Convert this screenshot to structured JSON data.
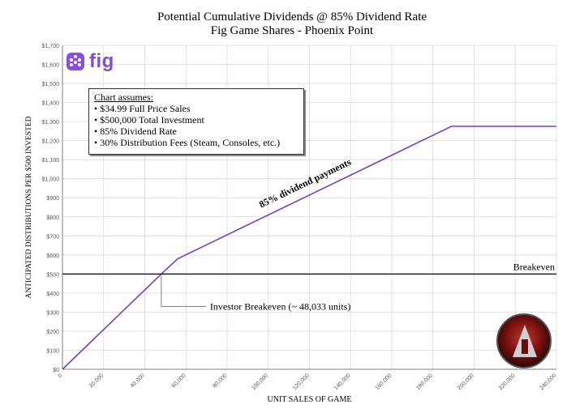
{
  "colors": {
    "series": "#7b3fb5",
    "breakeven": "#000000",
    "grid": "#d9d9d9",
    "axis": "#7f7f7f",
    "logo_purple": "#8a4fd8"
  },
  "logo": {
    "icon": "fig-logo-icon",
    "text": "fig"
  },
  "assumptions": {
    "title": "Chart assumes:",
    "items": [
      "$34.99 Full Price Sales",
      "$500,000 Total Investment",
      "85%  Dividend Rate",
      "30%  Distribution Fees (Steam, Consoles, etc.)"
    ]
  },
  "emblem": {
    "icon": "phoenix-point-emblem-icon"
  },
  "chart_data": {
    "type": "line",
    "title": "Potential Cumulative Dividends @ 85% Dividend Rate",
    "subtitle": "Fig Game Shares - Phoenix Point",
    "xlabel": "UNIT SALES OF GAME",
    "ylabel": "ANTICIPATED DISTRIBUTIONS PER $500 INVESTED",
    "xlim": [
      0,
      240000
    ],
    "ylim": [
      0,
      1700
    ],
    "grid": true,
    "x_ticks": [
      0,
      20000,
      40000,
      60000,
      80000,
      100000,
      120000,
      140000,
      160000,
      180000,
      200000,
      220000,
      240000
    ],
    "x_tick_labels": [
      "0",
      "20,000",
      "40,000",
      "60,000",
      "80,000",
      "100,000",
      "120,000",
      "140,000",
      "160,000",
      "180,000",
      "200,000",
      "220,000",
      "240,000"
    ],
    "y_ticks": [
      0,
      100,
      200,
      300,
      400,
      500,
      600,
      700,
      800,
      900,
      1000,
      1100,
      1200,
      1300,
      1400,
      1500,
      1600,
      1700
    ],
    "y_tick_labels": [
      "$0",
      "$100",
      "$200",
      "$300",
      "$400",
      "$500",
      "$600",
      "$700",
      "$800",
      "$900",
      "$1,000",
      "$1,100",
      "$1,200",
      "$1,300",
      "$1,400",
      "$1,500",
      "$1,600",
      "$1,700"
    ],
    "series": [
      {
        "x": [
          0,
          48033,
          56000,
          189000,
          240000
        ],
        "y": [
          0,
          500,
          580,
          1275,
          1275
        ]
      }
    ],
    "breakeven_line": {
      "y": 500,
      "label": "Breakeven"
    },
    "annotations": {
      "series_label": "85% dividend payments",
      "investor_breakeven": {
        "x": 48033,
        "y": 500,
        "label": "Investor Breakeven (~ 48,033 units)"
      }
    }
  }
}
